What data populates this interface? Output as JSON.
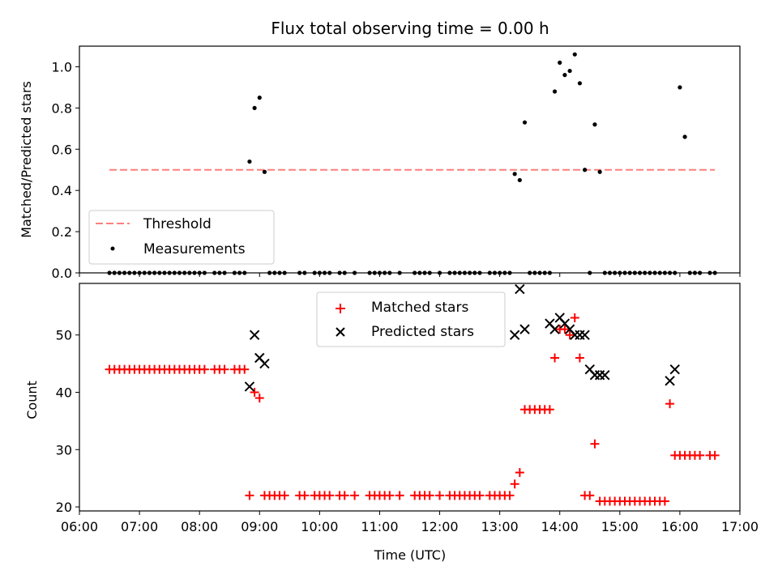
{
  "chart_data": [
    {
      "type": "scatter",
      "title": "Flux total observing time = 0.00 h",
      "xlabel": "",
      "ylabel": "Matched/Predicted stars",
      "xlim": [
        "06:00",
        "17:00"
      ],
      "ylim": [
        0,
        1.1
      ],
      "yticks": [
        "0.0",
        "0.2",
        "0.4",
        "0.6",
        "0.8",
        "1.0"
      ],
      "grid": false,
      "legend_position": "lower-left",
      "series": [
        {
          "name": "Threshold",
          "style": "dashed-line",
          "color": "#ff7f7f",
          "x": [
            "06:30",
            "16:35"
          ],
          "y": [
            0.5,
            0.5
          ]
        },
        {
          "name": "Measurements",
          "style": "dot",
          "color": "#000000",
          "x": [
            "06:30",
            "06:35",
            "06:40",
            "06:45",
            "06:50",
            "06:55",
            "07:00",
            "07:05",
            "07:10",
            "07:15",
            "07:20",
            "07:25",
            "07:30",
            "07:35",
            "07:40",
            "07:45",
            "07:50",
            "07:55",
            "08:00",
            "08:05",
            "08:15",
            "08:20",
            "08:25",
            "08:35",
            "08:40",
            "08:45",
            "08:50",
            "08:55",
            "09:00",
            "09:05",
            "09:10",
            "09:15",
            "09:20",
            "09:25",
            "09:40",
            "09:45",
            "09:55",
            "10:00",
            "10:05",
            "10:10",
            "10:20",
            "10:25",
            "10:35",
            "10:50",
            "10:55",
            "11:00",
            "11:05",
            "11:10",
            "11:20",
            "11:35",
            "11:40",
            "11:45",
            "11:50",
            "12:00",
            "12:10",
            "12:15",
            "12:20",
            "12:25",
            "12:30",
            "12:35",
            "12:40",
            "12:50",
            "12:55",
            "13:00",
            "13:05",
            "13:10",
            "13:15",
            "13:20",
            "13:25",
            "13:30",
            "13:35",
            "13:40",
            "13:45",
            "13:50",
            "13:55",
            "14:00",
            "14:05",
            "14:10",
            "14:15",
            "14:20",
            "14:25",
            "14:30",
            "14:35",
            "14:40",
            "14:45",
            "14:50",
            "14:55",
            "15:00",
            "15:05",
            "15:10",
            "15:15",
            "15:20",
            "15:25",
            "15:30",
            "15:35",
            "15:40",
            "15:45",
            "15:50",
            "15:55",
            "16:00",
            "16:05",
            "16:10",
            "16:15",
            "16:20",
            "16:30",
            "16:35"
          ],
          "y": [
            0,
            0,
            0,
            0,
            0,
            0,
            0,
            0,
            0,
            0,
            0,
            0,
            0,
            0,
            0,
            0,
            0,
            0,
            0,
            0,
            0,
            0,
            0,
            0,
            0,
            0,
            0.54,
            0.8,
            0.85,
            0.49,
            0,
            0,
            0,
            0,
            0,
            0,
            0,
            0,
            0,
            0,
            0,
            0,
            0,
            0,
            0,
            0,
            0,
            0,
            0,
            0,
            0,
            0,
            0,
            0,
            0,
            0,
            0,
            0,
            0,
            0,
            0,
            0,
            0,
            0,
            0,
            0,
            0.48,
            0.45,
            0.73,
            0,
            0,
            0,
            0,
            0,
            0.88,
            1.02,
            0.96,
            0.98,
            1.06,
            0.92,
            0.5,
            0,
            0.72,
            0.49,
            0,
            0,
            0,
            0,
            0,
            0,
            0,
            0,
            0,
            0,
            0,
            0,
            0,
            0,
            0,
            0.9,
            0.66,
            0,
            0,
            0,
            0,
            0
          ]
        }
      ]
    },
    {
      "type": "scatter",
      "title": "",
      "xlabel": "Time (UTC)",
      "ylabel": "Count",
      "xlim": [
        "06:00",
        "17:00"
      ],
      "ylim": [
        19.3,
        59
      ],
      "xticks": [
        "06:00",
        "07:00",
        "08:00",
        "09:00",
        "10:00",
        "11:00",
        "12:00",
        "13:00",
        "14:00",
        "15:00",
        "16:00",
        "17:00"
      ],
      "yticks": [
        "20",
        "30",
        "40",
        "50"
      ],
      "grid": false,
      "legend_position": "upper-center",
      "series": [
        {
          "name": "Matched stars",
          "style": "plus",
          "color": "#ff0000",
          "x": [
            "06:30",
            "06:35",
            "06:40",
            "06:45",
            "06:50",
            "06:55",
            "07:00",
            "07:05",
            "07:10",
            "07:15",
            "07:20",
            "07:25",
            "07:30",
            "07:35",
            "07:40",
            "07:45",
            "07:50",
            "07:55",
            "08:00",
            "08:05",
            "08:15",
            "08:20",
            "08:25",
            "08:35",
            "08:40",
            "08:45",
            "08:50",
            "08:55",
            "09:00",
            "09:05",
            "09:10",
            "09:15",
            "09:20",
            "09:25",
            "09:40",
            "09:45",
            "09:55",
            "10:00",
            "10:05",
            "10:10",
            "10:20",
            "10:25",
            "10:35",
            "10:50",
            "10:55",
            "11:00",
            "11:05",
            "11:10",
            "11:20",
            "11:35",
            "11:40",
            "11:45",
            "11:50",
            "12:00",
            "12:10",
            "12:15",
            "12:20",
            "12:25",
            "12:30",
            "12:35",
            "12:40",
            "12:50",
            "12:55",
            "13:00",
            "13:05",
            "13:10",
            "13:15",
            "13:20",
            "13:25",
            "13:30",
            "13:35",
            "13:40",
            "13:45",
            "13:50",
            "13:55",
            "14:00",
            "14:05",
            "14:10",
            "14:15",
            "14:20",
            "14:25",
            "14:30",
            "14:35",
            "14:40",
            "14:45",
            "14:50",
            "14:55",
            "15:00",
            "15:05",
            "15:10",
            "15:15",
            "15:20",
            "15:25",
            "15:30",
            "15:35",
            "15:40",
            "15:45",
            "15:50",
            "15:55",
            "16:00",
            "16:05",
            "16:10",
            "16:15",
            "16:20",
            "16:30",
            "16:35"
          ],
          "y": [
            44,
            44,
            44,
            44,
            44,
            44,
            44,
            44,
            44,
            44,
            44,
            44,
            44,
            44,
            44,
            44,
            44,
            44,
            44,
            44,
            44,
            44,
            44,
            44,
            44,
            44,
            22,
            40,
            39,
            22,
            22,
            22,
            22,
            22,
            22,
            22,
            22,
            22,
            22,
            22,
            22,
            22,
            22,
            22,
            22,
            22,
            22,
            22,
            22,
            22,
            22,
            22,
            22,
            22,
            22,
            22,
            22,
            22,
            22,
            22,
            22,
            22,
            22,
            22,
            22,
            22,
            24,
            26,
            37,
            37,
            37,
            37,
            37,
            37,
            46,
            51,
            51,
            50,
            53,
            46,
            22,
            22,
            31,
            21,
            21,
            21,
            21,
            21,
            21,
            21,
            21,
            21,
            21,
            21,
            21,
            21,
            21,
            38,
            29,
            29,
            29,
            29,
            29,
            29,
            29,
            29
          ]
        },
        {
          "name": "Predicted stars",
          "style": "x",
          "color": "#000000",
          "x": [
            "08:50",
            "08:55",
            "09:00",
            "09:05",
            "13:15",
            "13:20",
            "13:25",
            "13:50",
            "13:55",
            "14:00",
            "14:05",
            "14:10",
            "14:15",
            "14:20",
            "14:25",
            "14:30",
            "14:35",
            "14:40",
            "14:45",
            "15:50",
            "15:55"
          ],
          "y": [
            41,
            50,
            46,
            45,
            50,
            58,
            51,
            52,
            51,
            53,
            52,
            51,
            50,
            50,
            50,
            44,
            43,
            43,
            43,
            42,
            44
          ]
        }
      ]
    }
  ]
}
